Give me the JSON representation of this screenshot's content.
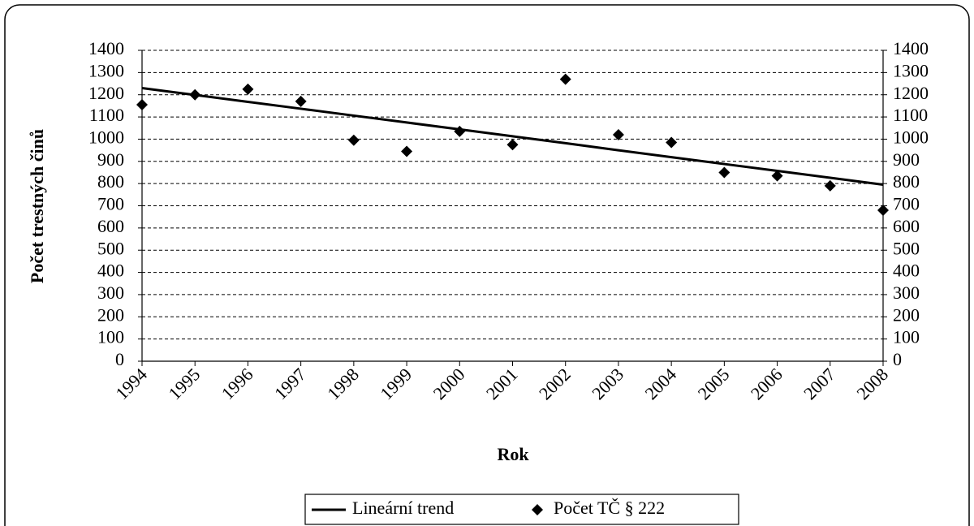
{
  "chart_data": {
    "type": "combo",
    "y_label": "Počet trestných činů",
    "x_label": "Rok",
    "categories": [
      "1994",
      "1995",
      "1996",
      "1997",
      "1998",
      "1999",
      "2000",
      "2001",
      "2002",
      "2003",
      "2004",
      "2005",
      "2006",
      "2007",
      "2008"
    ],
    "series": [
      {
        "name": "Lineární trend",
        "type": "line",
        "color": "#000000",
        "values": [
          1230,
          1199,
          1168,
          1137,
          1106,
          1075,
          1044,
          1013,
          982,
          950,
          919,
          888,
          857,
          826,
          795
        ]
      },
      {
        "name": "Počet TČ § 222",
        "type": "scatter",
        "color": "#000000",
        "values": [
          1155,
          1200,
          1225,
          1170,
          995,
          945,
          1035,
          975,
          1270,
          1020,
          985,
          850,
          835,
          790,
          680
        ]
      }
    ],
    "ylim": [
      0,
      1400
    ],
    "yticks": [
      0,
      100,
      200,
      300,
      400,
      500,
      600,
      700,
      800,
      900,
      1000,
      1100,
      1200,
      1300,
      1400
    ],
    "grid": true,
    "legend": "bottom"
  }
}
